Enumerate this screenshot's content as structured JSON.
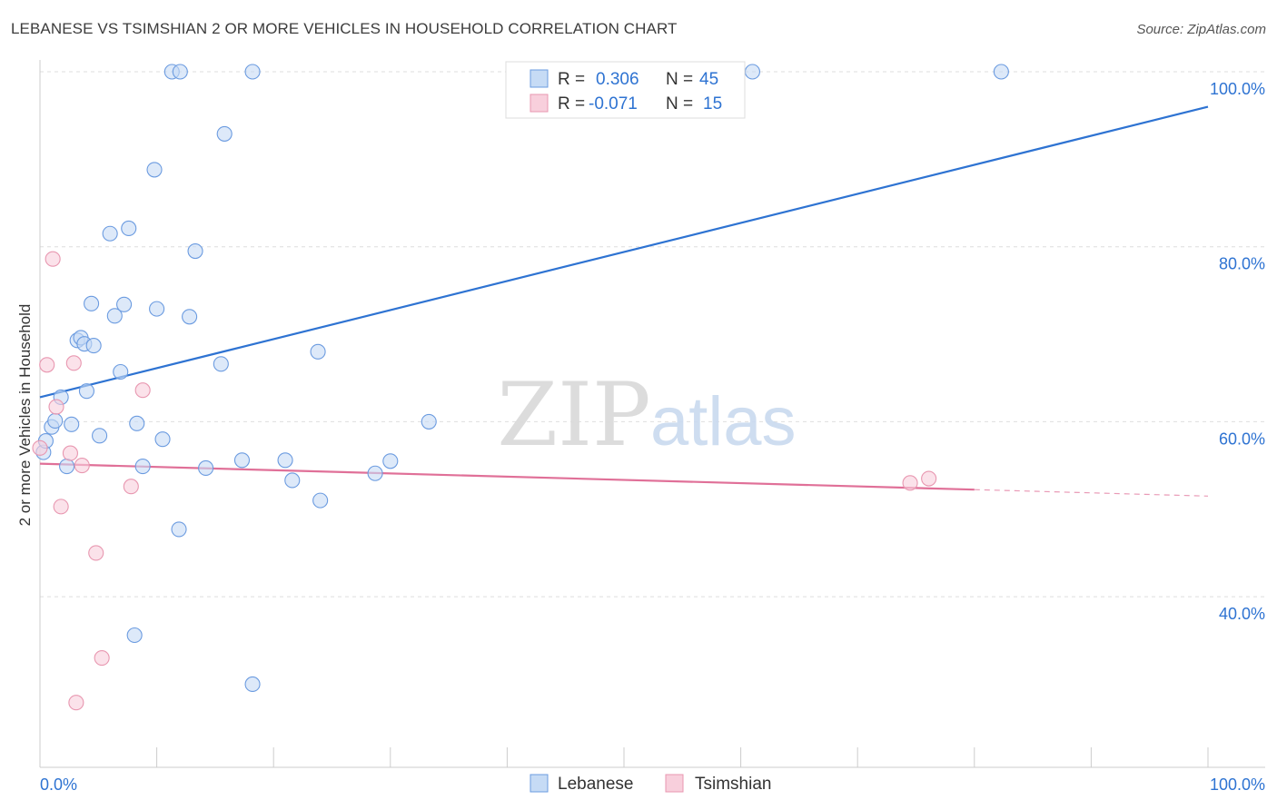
{
  "chart_data": {
    "type": "scatter",
    "title": "LEBANESE VS TSIMSHIAN 2 OR MORE VEHICLES IN HOUSEHOLD CORRELATION CHART",
    "source": "Source: ZipAtlas.com",
    "xlabel": "",
    "ylabel": "2 or more Vehicles in Household",
    "xlim": [
      0,
      100
    ],
    "ylim": [
      20.5,
      100
    ],
    "x_tick_labels": [
      "0.0%",
      "100.0%"
    ],
    "y_ticks": [
      40,
      60,
      80,
      100
    ],
    "y_tick_labels": [
      "40.0%",
      "60.0%",
      "80.0%",
      "100.0%"
    ],
    "grid": true,
    "watermark": {
      "zip": "ZIP",
      "atlas": "atlas"
    },
    "legend": {
      "r_label": "R =",
      "n_label": "N =",
      "entries": [
        {
          "name": "Lebanese",
          "r": "0.306",
          "n": "45"
        },
        {
          "name": "Tsimshian",
          "r": "-0.071",
          "n": "15"
        }
      ]
    },
    "series": [
      {
        "name": "Lebanese",
        "color": "#6b9be0",
        "fill": "#c6dbf5",
        "line_color": "#2e73d2",
        "trend": {
          "x0": 0,
          "y0": 62.8,
          "x1": 100,
          "y1": 96.0,
          "solid_until": 100
        },
        "points": [
          [
            0.3,
            56.5
          ],
          [
            0.5,
            57.8
          ],
          [
            1.0,
            59.4
          ],
          [
            1.3,
            60.1
          ],
          [
            1.8,
            62.8
          ],
          [
            2.3,
            54.9
          ],
          [
            2.7,
            59.7
          ],
          [
            3.2,
            69.3
          ],
          [
            3.5,
            69.6
          ],
          [
            3.8,
            68.9
          ],
          [
            4.0,
            63.5
          ],
          [
            4.4,
            73.5
          ],
          [
            4.6,
            68.7
          ],
          [
            5.1,
            58.4
          ],
          [
            6.0,
            81.5
          ],
          [
            6.4,
            72.1
          ],
          [
            6.9,
            65.7
          ],
          [
            7.2,
            73.4
          ],
          [
            7.6,
            82.1
          ],
          [
            8.3,
            59.8
          ],
          [
            8.8,
            54.9
          ],
          [
            9.8,
            88.8
          ],
          [
            10.0,
            72.9
          ],
          [
            10.5,
            58.0
          ],
          [
            11.3,
            100.0
          ],
          [
            11.9,
            47.7
          ],
          [
            12.0,
            100.0
          ],
          [
            12.8,
            72.0
          ],
          [
            13.3,
            79.5
          ],
          [
            14.2,
            54.7
          ],
          [
            15.5,
            66.6
          ],
          [
            15.8,
            92.9
          ],
          [
            17.3,
            55.6
          ],
          [
            18.2,
            100.0
          ],
          [
            18.2,
            30.0
          ],
          [
            21.0,
            55.6
          ],
          [
            21.6,
            53.3
          ],
          [
            23.8,
            68.0
          ],
          [
            24.0,
            51.0
          ],
          [
            28.7,
            54.1
          ],
          [
            30.0,
            55.5
          ],
          [
            33.3,
            60.0
          ],
          [
            61.0,
            100.0
          ],
          [
            82.3,
            100.0
          ],
          [
            8.1,
            35.6
          ]
        ]
      },
      {
        "name": "Tsimshian",
        "color": "#e897b0",
        "fill": "#f8cfdc",
        "line_color": "#e07098",
        "trend": {
          "x0": 0,
          "y0": 55.2,
          "x1": 100,
          "y1": 51.5,
          "solid_until": 80
        },
        "points": [
          [
            0.0,
            57.0
          ],
          [
            0.6,
            66.5
          ],
          [
            1.1,
            78.6
          ],
          [
            1.4,
            61.7
          ],
          [
            1.8,
            50.3
          ],
          [
            2.6,
            56.4
          ],
          [
            2.9,
            66.7
          ],
          [
            3.1,
            27.9
          ],
          [
            3.6,
            55.0
          ],
          [
            4.8,
            45.0
          ],
          [
            5.3,
            33.0
          ],
          [
            7.8,
            52.6
          ],
          [
            8.8,
            63.6
          ],
          [
            74.5,
            53.0
          ],
          [
            76.1,
            53.5
          ]
        ]
      }
    ]
  }
}
